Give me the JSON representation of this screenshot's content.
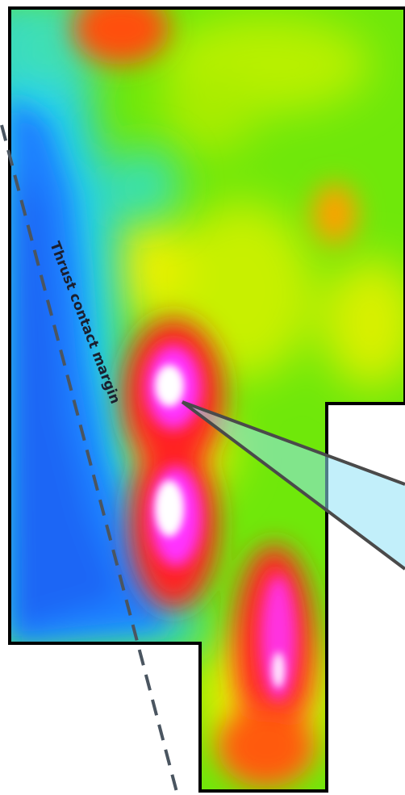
{
  "map": {
    "annotation": "Thrust contact margin"
  },
  "colors": {
    "background": "#ffffff",
    "outline": "#000000",
    "contact_line": "#4a5560",
    "callout_fill": "#8fe2f5",
    "callout_stroke": "#4a4a4a",
    "ramp_low": "#1e88ff",
    "ramp_mid": "#7cf000",
    "ramp_high": "#ff2020",
    "ramp_peak": "#ffffff"
  }
}
